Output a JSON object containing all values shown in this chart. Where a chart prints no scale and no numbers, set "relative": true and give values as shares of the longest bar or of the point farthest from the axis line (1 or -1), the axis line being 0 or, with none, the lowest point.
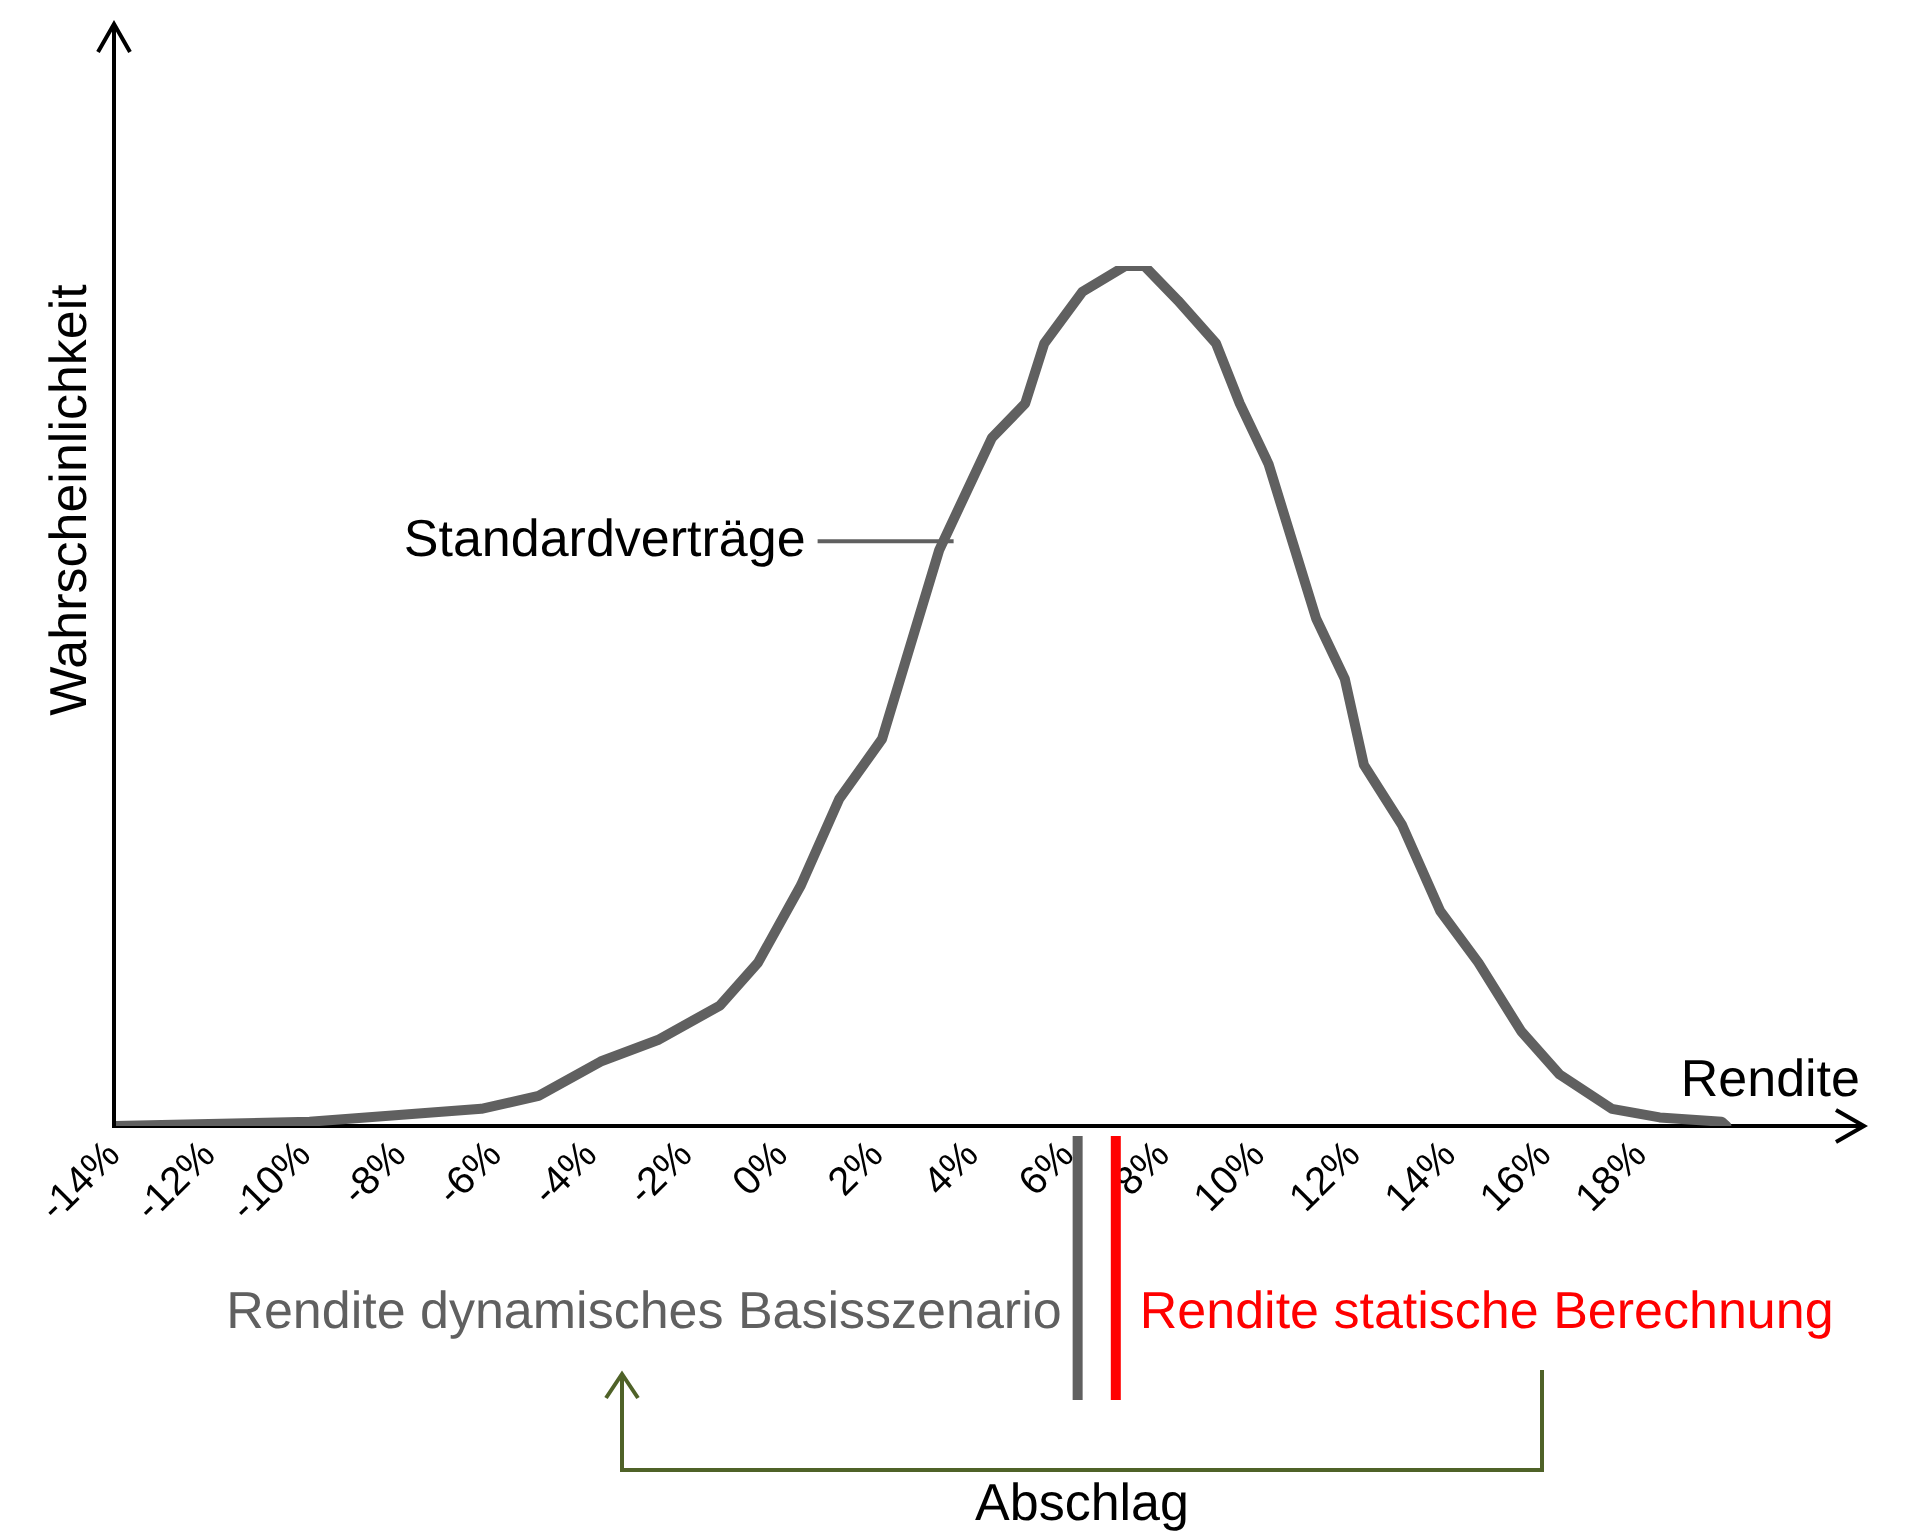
{
  "chart_data": {
    "type": "line",
    "xlabel": "Rendite",
    "ylabel": "Wahrscheinlichkeit",
    "relative": true,
    "xlim": [
      -14,
      22.6
    ],
    "xticks": [
      {
        "value": -14,
        "label": "-14%"
      },
      {
        "value": -12,
        "label": "-12%"
      },
      {
        "value": -10,
        "label": "-10%"
      },
      {
        "value": -8,
        "label": "-8%"
      },
      {
        "value": -6,
        "label": "-6%"
      },
      {
        "value": -4,
        "label": "-4%"
      },
      {
        "value": -2,
        "label": "-2%"
      },
      {
        "value": 0,
        "label": "0%"
      },
      {
        "value": 2,
        "label": "2%"
      },
      {
        "value": 4,
        "label": "4%"
      },
      {
        "value": 6,
        "label": "6%"
      },
      {
        "value": 8,
        "label": "8%"
      },
      {
        "value": 10,
        "label": "10%"
      },
      {
        "value": 12,
        "label": "12%"
      },
      {
        "value": 14,
        "label": "14%"
      },
      {
        "value": 16,
        "label": "16%"
      },
      {
        "value": 18,
        "label": "18%"
      }
    ],
    "grid": false,
    "legend": false,
    "marker": "none",
    "line_style": "solid",
    "series": [
      {
        "color": "#606060",
        "x": [
          -14,
          -9.9,
          -6.3,
          -5.1,
          -3.8,
          -2.6,
          -1.3,
          -0.5,
          0.4,
          1.2,
          2.1,
          2.7,
          3.3,
          4.4,
          5.1,
          5.5,
          6.3,
          7.2,
          7.6,
          8.3,
          9.1,
          9.6,
          10.2,
          10.7,
          11.2,
          11.8,
          12.2,
          13.0,
          13.8,
          14.6,
          15.5,
          16.3,
          17.4,
          18.4,
          19.7,
          19.8
        ],
        "values": [
          0,
          0.005,
          0.02,
          0.035,
          0.075,
          0.1,
          0.14,
          0.19,
          0.28,
          0.38,
          0.45,
          0.56,
          0.67,
          0.8,
          0.84,
          0.91,
          0.97,
          1.0,
          1.0,
          0.96,
          0.91,
          0.84,
          0.77,
          0.68,
          0.59,
          0.52,
          0.42,
          0.35,
          0.25,
          0.19,
          0.11,
          0.06,
          0.02,
          0.01,
          0.005,
          0
        ]
      }
    ],
    "ref_lines": [
      {
        "axis": "x",
        "value": 6.2,
        "label": "Rendite dynamisches Basisszenario",
        "color": "#606060"
      },
      {
        "axis": "x",
        "value": 7.0,
        "label": "Rendite statische Berechnung",
        "color": "#ff0000"
      }
    ],
    "annotations": [
      {
        "text": "Standardverträge",
        "x": 3.6,
        "y": 0.68
      },
      "Abschlag"
    ]
  }
}
